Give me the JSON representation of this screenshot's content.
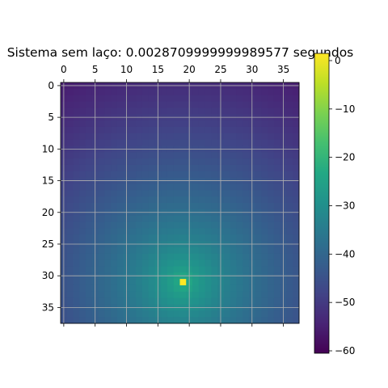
{
  "chart_data": {
    "type": "heatmap",
    "title": "Sistema sem laço: 0.0028709999999989577 segundos",
    "xlabel": "",
    "ylabel": "",
    "grid_size": [
      38,
      38
    ],
    "peak": {
      "row": 31,
      "col": 19,
      "value": 0
    },
    "value_range": [
      -60,
      0
    ],
    "x_ticks": [
      0,
      5,
      10,
      15,
      20,
      25,
      30,
      35
    ],
    "y_ticks": [
      0,
      5,
      10,
      15,
      20,
      25,
      30,
      35
    ],
    "x_axis_position": "top",
    "grid": true,
    "colormap": "viridis",
    "colorbar": {
      "ticks": [
        0,
        -10,
        -20,
        -30,
        -40,
        -50,
        -60
      ],
      "position": "right"
    }
  }
}
